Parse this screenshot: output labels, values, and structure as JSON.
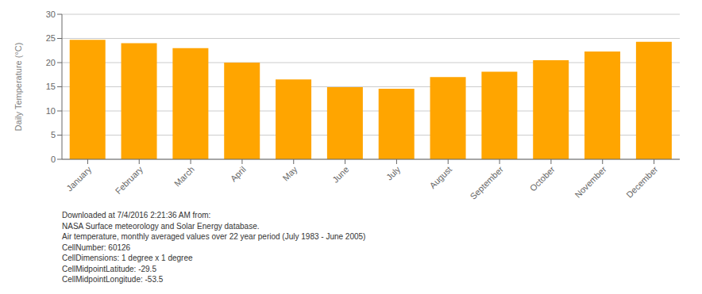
{
  "chart_data": {
    "type": "bar",
    "categories": [
      "January",
      "February",
      "March",
      "April",
      "May",
      "June",
      "July",
      "August",
      "September",
      "October",
      "November",
      "December"
    ],
    "values": [
      24.7,
      24.0,
      23.0,
      20.0,
      16.5,
      14.9,
      14.6,
      17.0,
      18.1,
      20.5,
      22.3,
      24.3
    ],
    "color": "#FFA500",
    "ylabel": "Daily Temperature (°C)",
    "ylim": [
      0,
      30
    ],
    "yticks": [
      0,
      5,
      10,
      15,
      20,
      25,
      30
    ],
    "grid": true,
    "annotations": [
      "Downloaded at 7/4/2016 2:21:36 AM from:",
      "NASA Surface meteorology and Solar Energy database.",
      "Air temperature, monthly averaged values over 22 year period (July 1983 - June 2005)",
      "CellNumber: 60126",
      "CellDimensions: 1 degree x 1 degree",
      "CellMidpointLatitude: -29.5",
      "CellMidpointLongitude: -53.5"
    ]
  }
}
